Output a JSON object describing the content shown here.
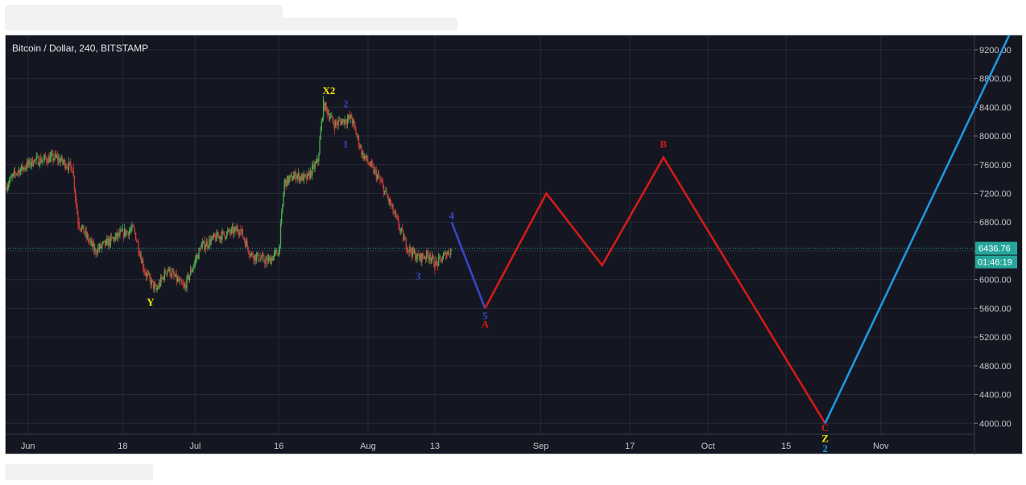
{
  "chart_data": {
    "type": "line",
    "title": "Bitcoin / Dollar, 240, BITSTAMP",
    "symbol": "Bitcoin / Dollar",
    "interval": "240",
    "exchange": "BITSTAMP",
    "ylim": [
      3600,
      9400
    ],
    "y_ticks": [
      4000,
      4400,
      4800,
      5200,
      5600,
      6000,
      6400,
      6800,
      7200,
      7600,
      8000,
      8400,
      8800,
      9200
    ],
    "y_tick_labels": [
      "4000.00",
      "4400.00",
      "4800.00",
      "5200.00",
      "5600.00",
      "6000.00",
      "6400.00",
      "6800.00",
      "7200.00",
      "7600.00",
      "8000.00",
      "8400.00",
      "8800.00",
      "9200.00"
    ],
    "x_range": [
      "2018-05-28",
      "2018-11-24"
    ],
    "x_ticks": [
      {
        "date": "2018-06-01",
        "label": "Jun"
      },
      {
        "date": "2018-06-18",
        "label": "18"
      },
      {
        "date": "2018-07-01",
        "label": "Jul"
      },
      {
        "date": "2018-07-16",
        "label": "16"
      },
      {
        "date": "2018-08-01",
        "label": "Aug"
      },
      {
        "date": "2018-08-13",
        "label": "13"
      },
      {
        "date": "2018-09-01",
        "label": "Sep"
      },
      {
        "date": "2018-09-17",
        "label": "17"
      },
      {
        "date": "2018-10-01",
        "label": "Oct"
      },
      {
        "date": "2018-10-15",
        "label": "15"
      },
      {
        "date": "2018-11-01",
        "label": "Nov"
      }
    ],
    "grid": true,
    "current_price": {
      "value": 6436.76,
      "label": "6436.76",
      "color": "#26a69a"
    },
    "countdown": "01:46:19",
    "price_path": [
      [
        "2018-05-28",
        7300
      ],
      [
        "2018-05-30",
        7500
      ],
      [
        "2018-06-02",
        7650
      ],
      [
        "2018-06-06",
        7700
      ],
      [
        "2018-06-09",
        7550
      ],
      [
        "2018-06-10",
        6800
      ],
      [
        "2018-06-13",
        6400
      ],
      [
        "2018-06-15",
        6500
      ],
      [
        "2018-06-18",
        6650
      ],
      [
        "2018-06-20",
        6700
      ],
      [
        "2018-06-22",
        6100
      ],
      [
        "2018-06-24",
        5850
      ],
      [
        "2018-06-26",
        6150
      ],
      [
        "2018-06-29",
        5880
      ],
      [
        "2018-07-02",
        6450
      ],
      [
        "2018-07-05",
        6600
      ],
      [
        "2018-07-09",
        6700
      ],
      [
        "2018-07-11",
        6350
      ],
      [
        "2018-07-14",
        6250
      ],
      [
        "2018-07-16",
        6400
      ],
      [
        "2018-07-17",
        7350
      ],
      [
        "2018-07-19",
        7450
      ],
      [
        "2018-07-21",
        7400
      ],
      [
        "2018-07-23",
        7650
      ],
      [
        "2018-07-24",
        8450
      ],
      [
        "2018-07-26",
        8150
      ],
      [
        "2018-07-27",
        8200
      ],
      [
        "2018-07-29",
        8250
      ],
      [
        "2018-07-31",
        7750
      ],
      [
        "2018-08-03",
        7400
      ],
      [
        "2018-08-05",
        7050
      ],
      [
        "2018-08-08",
        6450
      ],
      [
        "2018-08-10",
        6300
      ],
      [
        "2018-08-12",
        6350
      ],
      [
        "2018-08-13",
        6200
      ],
      [
        "2018-08-15",
        6350
      ],
      [
        "2018-08-16",
        6420
      ]
    ],
    "annotations": [
      {
        "name": "wave-4-5",
        "color": "#3a45c8",
        "points": [
          [
            "2018-08-16",
            6800
          ],
          [
            "2018-08-22",
            5600
          ]
        ],
        "labels": [
          {
            "text": "1",
            "date": "2018-07-28",
            "price": 7840,
            "color": "#3a45c8"
          },
          {
            "text": "2",
            "date": "2018-07-28",
            "price": 8400,
            "color": "#3a45c8"
          },
          {
            "text": "3",
            "date": "2018-08-10",
            "price": 6000,
            "color": "#3a45c8"
          },
          {
            "text": "4",
            "date": "2018-08-16",
            "price": 6840,
            "color": "#3a45c8"
          },
          {
            "text": "5",
            "date": "2018-08-22",
            "price": 5450,
            "color": "#3a45c8"
          }
        ]
      },
      {
        "name": "wave-abc",
        "color": "#d41a1a",
        "points": [
          [
            "2018-08-22",
            5600
          ],
          [
            "2018-09-02",
            7200
          ],
          [
            "2018-09-12",
            6200
          ],
          [
            "2018-09-23",
            7700
          ],
          [
            "2018-10-22",
            4000
          ]
        ],
        "labels": [
          {
            "text": "A",
            "date": "2018-08-22",
            "price": 5330,
            "color": "#d41a1a"
          },
          {
            "text": "B",
            "date": "2018-09-23",
            "price": 7840,
            "color": "#d41a1a"
          },
          {
            "text": "C",
            "date": "2018-10-22",
            "price": 3890,
            "color": "#d41a1a"
          }
        ]
      },
      {
        "name": "wave-2-projection",
        "color": "#1f96e0",
        "points": [
          [
            "2018-10-22",
            4000
          ],
          [
            "2018-11-24",
            9400
          ]
        ],
        "labels": [
          {
            "text": "2",
            "date": "2018-10-22",
            "price": 3600,
            "color": "#1f96e0"
          }
        ]
      },
      {
        "name": "wave-xyz",
        "color": "#f2e600",
        "points": [],
        "labels": [
          {
            "text": "Y",
            "date": "2018-06-23",
            "price": 5640,
            "color": "#f2e600"
          },
          {
            "text": "X2",
            "date": "2018-07-25",
            "price": 8580,
            "color": "#f2e600"
          },
          {
            "text": "Z",
            "date": "2018-10-22",
            "price": 3740,
            "color": "#f2e600"
          }
        ]
      }
    ]
  }
}
